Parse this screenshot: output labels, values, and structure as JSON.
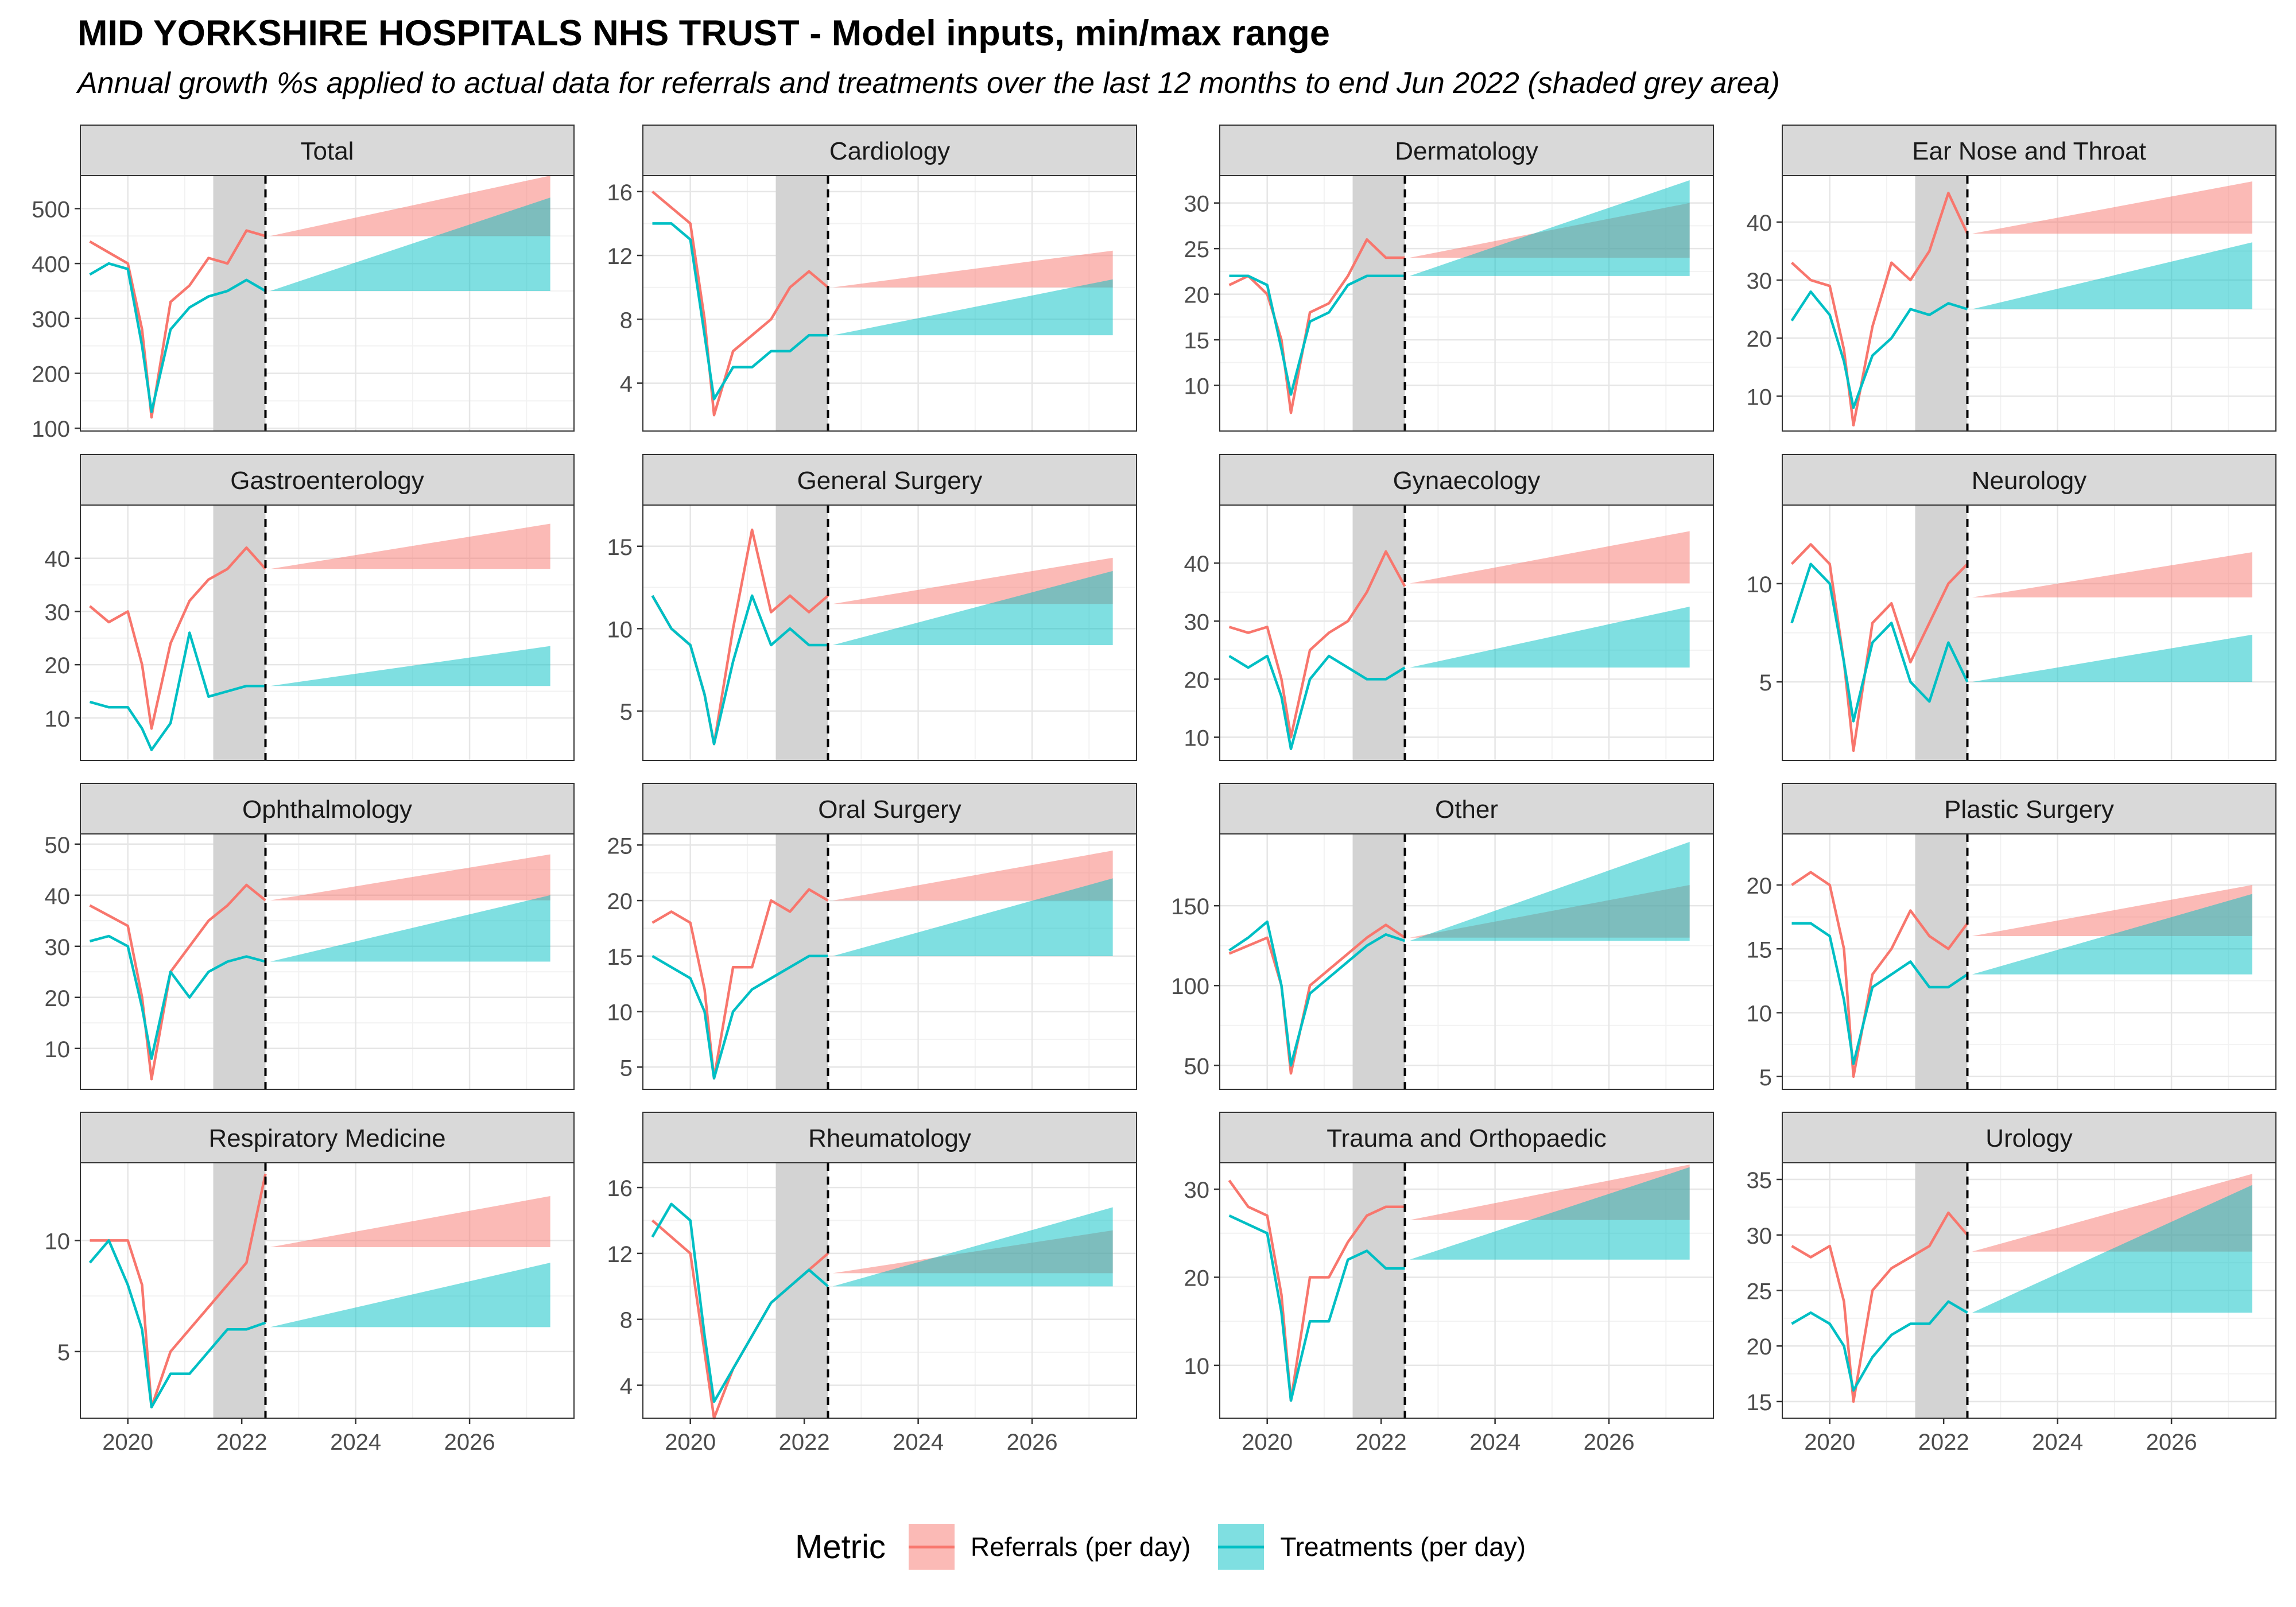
{
  "title": "MID YORKSHIRE HOSPITALS NHS TRUST - Model inputs, min/max range",
  "subtitle": "Annual growth %s applied to actual data for referrals and treatments over the last 12 months to end Jun 2022 (shaded grey area)",
  "legend": {
    "title": "Metric",
    "items": [
      {
        "label": "Referrals (per day)",
        "color": "#F8766D"
      },
      {
        "label": "Treatments (per day)",
        "color": "#00BFC4"
      }
    ]
  },
  "colors": {
    "referrals": "#F8766D",
    "treatments": "#00BFC4",
    "shade": "#d3d3d3",
    "strip": "#d9d9d9"
  },
  "chart_data": {
    "type": "line",
    "facet_layout": {
      "rows": 4,
      "cols": 4
    },
    "x_axis": {
      "ticks": [
        "2020",
        "2022",
        "2024",
        "2026"
      ],
      "range": [
        "2019-03",
        "2027-11"
      ]
    },
    "history_x": [
      "2019-05",
      "2019-09",
      "2020-01",
      "2020-04",
      "2020-06",
      "2020-10",
      "2021-02",
      "2021-06",
      "2021-10",
      "2022-02",
      "2022-06"
    ],
    "shaded_period": [
      "2021-07",
      "2022-06"
    ],
    "forecast_range": [
      "2022-07",
      "2027-06"
    ],
    "panels": [
      {
        "name": "Total",
        "yticks": [
          100,
          200,
          300,
          400,
          500
        ],
        "ylim": [
          95,
          560
        ],
        "series": [
          {
            "name": "Referrals (per day)",
            "values": [
              440,
              420,
              400,
              280,
              120,
              330,
              360,
              410,
              400,
              460,
              450
            ],
            "forecast_start": 450,
            "forecast_min": 450,
            "forecast_max": 560
          },
          {
            "name": "Treatments (per day)",
            "values": [
              380,
              400,
              390,
              250,
              130,
              280,
              320,
              340,
              350,
              370,
              350
            ],
            "forecast_start": 350,
            "forecast_min": 350,
            "forecast_max": 520
          }
        ]
      },
      {
        "name": "Cardiology",
        "yticks": [
          4,
          8,
          12,
          16
        ],
        "ylim": [
          1,
          17
        ],
        "series": [
          {
            "name": "Referrals (per day)",
            "values": [
              16,
              15,
              14,
              8,
              2,
              6,
              7,
              8,
              10,
              11,
              10
            ],
            "forecast_start": 10,
            "forecast_min": 10,
            "forecast_max": 12.3
          },
          {
            "name": "Treatments (per day)",
            "values": [
              14,
              14,
              13,
              7,
              3,
              5,
              5,
              6,
              6,
              7,
              7
            ],
            "forecast_start": 7,
            "forecast_min": 7,
            "forecast_max": 10.5
          }
        ]
      },
      {
        "name": "Dermatology",
        "yticks": [
          10,
          15,
          20,
          25,
          30
        ],
        "ylim": [
          5,
          33
        ],
        "series": [
          {
            "name": "Referrals (per day)",
            "values": [
              21,
              22,
              20,
              15,
              7,
              18,
              19,
              22,
              26,
              24,
              24
            ],
            "forecast_start": 24,
            "forecast_min": 24,
            "forecast_max": 30
          },
          {
            "name": "Treatments (per day)",
            "values": [
              22,
              22,
              21,
              14,
              9,
              17,
              18,
              21,
              22,
              22,
              22
            ],
            "forecast_start": 22,
            "forecast_min": 22,
            "forecast_max": 32.5
          }
        ]
      },
      {
        "name": "Ear Nose and Throat",
        "yticks": [
          10,
          20,
          30,
          40
        ],
        "ylim": [
          4,
          48
        ],
        "series": [
          {
            "name": "Referrals (per day)",
            "values": [
              33,
              30,
              29,
              18,
              5,
              22,
              33,
              30,
              35,
              45,
              38
            ],
            "forecast_start": 38,
            "forecast_min": 38,
            "forecast_max": 47
          },
          {
            "name": "Treatments (per day)",
            "values": [
              23,
              28,
              24,
              16,
              8,
              17,
              20,
              25,
              24,
              26,
              25
            ],
            "forecast_start": 25,
            "forecast_min": 25,
            "forecast_max": 36.5
          }
        ]
      },
      {
        "name": "Gastroenterology",
        "yticks": [
          10,
          20,
          30,
          40
        ],
        "ylim": [
          2,
          50
        ],
        "series": [
          {
            "name": "Referrals (per day)",
            "values": [
              31,
              28,
              30,
              20,
              8,
              24,
              32,
              36,
              38,
              42,
              38
            ],
            "forecast_start": 38,
            "forecast_min": 38,
            "forecast_max": 46.5
          },
          {
            "name": "Treatments (per day)",
            "values": [
              13,
              12,
              12,
              8,
              4,
              9,
              26,
              14,
              15,
              16,
              16
            ],
            "forecast_start": 16,
            "forecast_min": 16,
            "forecast_max": 23.5
          }
        ]
      },
      {
        "name": "General Surgery",
        "yticks": [
          5,
          10,
          15
        ],
        "ylim": [
          2,
          17.5
        ],
        "series": [
          {
            "name": "Referrals (per day)",
            "values": [
              12,
              10,
              9,
              6,
              3,
              10,
              16,
              11,
              12,
              11,
              12
            ],
            "forecast_start": 11.5,
            "forecast_min": 11.5,
            "forecast_max": 14.3
          },
          {
            "name": "Treatments (per day)",
            "values": [
              12,
              10,
              9,
              6,
              3,
              8,
              12,
              9,
              10,
              9,
              9
            ],
            "forecast_start": 9,
            "forecast_min": 9,
            "forecast_max": 13.5
          }
        ]
      },
      {
        "name": "Gynaecology",
        "yticks": [
          10,
          20,
          30,
          40
        ],
        "ylim": [
          6,
          50
        ],
        "series": [
          {
            "name": "Referrals (per day)",
            "values": [
              29,
              28,
              29,
              20,
              10,
              25,
              28,
              30,
              35,
              42,
              36
            ],
            "forecast_start": 36.5,
            "forecast_min": 36.5,
            "forecast_max": 45.5
          },
          {
            "name": "Treatments (per day)",
            "values": [
              24,
              22,
              24,
              17,
              8,
              20,
              24,
              22,
              20,
              20,
              22
            ],
            "forecast_start": 22,
            "forecast_min": 22,
            "forecast_max": 32.5
          }
        ]
      },
      {
        "name": "Neurology",
        "yticks": [
          5,
          10
        ],
        "ylim": [
          1,
          14
        ],
        "series": [
          {
            "name": "Referrals (per day)",
            "values": [
              11,
              12,
              11,
              6,
              1.5,
              8,
              9,
              6,
              8,
              10,
              11
            ],
            "forecast_start": 9.3,
            "forecast_min": 9.3,
            "forecast_max": 11.6
          },
          {
            "name": "Treatments (per day)",
            "values": [
              8,
              11,
              10,
              6,
              3,
              7,
              8,
              5,
              4,
              7,
              5
            ],
            "forecast_start": 5,
            "forecast_min": 5,
            "forecast_max": 7.4
          }
        ]
      },
      {
        "name": "Ophthalmology",
        "yticks": [
          10,
          20,
          30,
          40,
          50
        ],
        "ylim": [
          2,
          52
        ],
        "series": [
          {
            "name": "Referrals (per day)",
            "values": [
              38,
              36,
              34,
              20,
              4,
              25,
              30,
              35,
              38,
              42,
              39
            ],
            "forecast_start": 39,
            "forecast_min": 39,
            "forecast_max": 48
          },
          {
            "name": "Treatments (per day)",
            "values": [
              31,
              32,
              30,
              18,
              8,
              25,
              20,
              25,
              27,
              28,
              27
            ],
            "forecast_start": 27,
            "forecast_min": 27,
            "forecast_max": 40
          }
        ]
      },
      {
        "name": "Oral Surgery",
        "yticks": [
          5,
          10,
          15,
          20,
          25
        ],
        "ylim": [
          3,
          26
        ],
        "series": [
          {
            "name": "Referrals (per day)",
            "values": [
              18,
              19,
              18,
              12,
              4,
              14,
              14,
              20,
              19,
              21,
              20
            ],
            "forecast_start": 20,
            "forecast_min": 20,
            "forecast_max": 24.5
          },
          {
            "name": "Treatments (per day)",
            "values": [
              15,
              14,
              13,
              10,
              4,
              10,
              12,
              13,
              14,
              15,
              15
            ],
            "forecast_start": 15,
            "forecast_min": 15,
            "forecast_max": 22
          }
        ]
      },
      {
        "name": "Other",
        "yticks": [
          50,
          100,
          150
        ],
        "ylim": [
          35,
          195
        ],
        "series": [
          {
            "name": "Referrals (per day)",
            "values": [
              120,
              125,
              130,
              100,
              45,
              100,
              110,
              120,
              130,
              138,
              130
            ],
            "forecast_start": 130,
            "forecast_min": 130,
            "forecast_max": 163
          },
          {
            "name": "Treatments (per day)",
            "values": [
              122,
              130,
              140,
              100,
              50,
              95,
              105,
              115,
              125,
              132,
              128
            ],
            "forecast_start": 128,
            "forecast_min": 128,
            "forecast_max": 190
          }
        ]
      },
      {
        "name": "Plastic Surgery",
        "yticks": [
          5,
          10,
          15,
          20
        ],
        "ylim": [
          4,
          24
        ],
        "series": [
          {
            "name": "Referrals (per day)",
            "values": [
              20,
              21,
              20,
              15,
              5,
              13,
              15,
              18,
              16,
              15,
              17
            ],
            "forecast_start": 16,
            "forecast_min": 16,
            "forecast_max": 20
          },
          {
            "name": "Treatments (per day)",
            "values": [
              17,
              17,
              16,
              11,
              6,
              12,
              13,
              14,
              12,
              12,
              13
            ],
            "forecast_start": 13,
            "forecast_min": 13,
            "forecast_max": 19.3
          }
        ]
      },
      {
        "name": "Respiratory Medicine",
        "yticks": [
          5,
          10
        ],
        "ylim": [
          2,
          13.5
        ],
        "series": [
          {
            "name": "Referrals (per day)",
            "values": [
              10,
              10,
              10,
              8,
              2.5,
              5,
              6,
              7,
              8,
              9,
              13
            ],
            "forecast_start": 9.7,
            "forecast_min": 9.7,
            "forecast_max": 12
          },
          {
            "name": "Treatments (per day)",
            "values": [
              9,
              10,
              8,
              6,
              2.5,
              4,
              4,
              5,
              6,
              6,
              6.3
            ],
            "forecast_start": 6.1,
            "forecast_min": 6.1,
            "forecast_max": 9
          }
        ]
      },
      {
        "name": "Rheumatology",
        "yticks": [
          4,
          8,
          12,
          16
        ],
        "ylim": [
          2,
          17.5
        ],
        "series": [
          {
            "name": "Referrals (per day)",
            "values": [
              14,
              13,
              12,
              6,
              2,
              5,
              7,
              9,
              10,
              11,
              12
            ],
            "forecast_start": 10.8,
            "forecast_min": 10.8,
            "forecast_max": 13.4
          },
          {
            "name": "Treatments (per day)",
            "values": [
              13,
              15,
              14,
              7,
              3,
              5,
              7,
              9,
              10,
              11,
              10
            ],
            "forecast_start": 10,
            "forecast_min": 10,
            "forecast_max": 14.8
          }
        ]
      },
      {
        "name": "Trauma and Orthopaedic",
        "yticks": [
          10,
          20,
          30
        ],
        "ylim": [
          4,
          33
        ],
        "series": [
          {
            "name": "Referrals (per day)",
            "values": [
              31,
              28,
              27,
              18,
              6,
              20,
              20,
              24,
              27,
              28,
              28
            ],
            "forecast_start": 26.5,
            "forecast_min": 26.5,
            "forecast_max": 32.8
          },
          {
            "name": "Treatments (per day)",
            "values": [
              27,
              26,
              25,
              16,
              6,
              15,
              15,
              22,
              23,
              21,
              21
            ],
            "forecast_start": 22,
            "forecast_min": 22,
            "forecast_max": 32.5
          }
        ]
      },
      {
        "name": "Urology",
        "yticks": [
          15,
          20,
          25,
          30,
          35
        ],
        "ylim": [
          13.5,
          36.5
        ],
        "series": [
          {
            "name": "Referrals (per day)",
            "values": [
              29,
              28,
              29,
              24,
              15,
              25,
              27,
              28,
              29,
              32,
              30
            ],
            "forecast_start": 28.5,
            "forecast_min": 28.5,
            "forecast_max": 35.5
          },
          {
            "name": "Treatments (per day)",
            "values": [
              22,
              23,
              22,
              20,
              16,
              19,
              21,
              22,
              22,
              24,
              23
            ],
            "forecast_start": 23,
            "forecast_min": 23,
            "forecast_max": 34.5
          }
        ]
      }
    ]
  }
}
